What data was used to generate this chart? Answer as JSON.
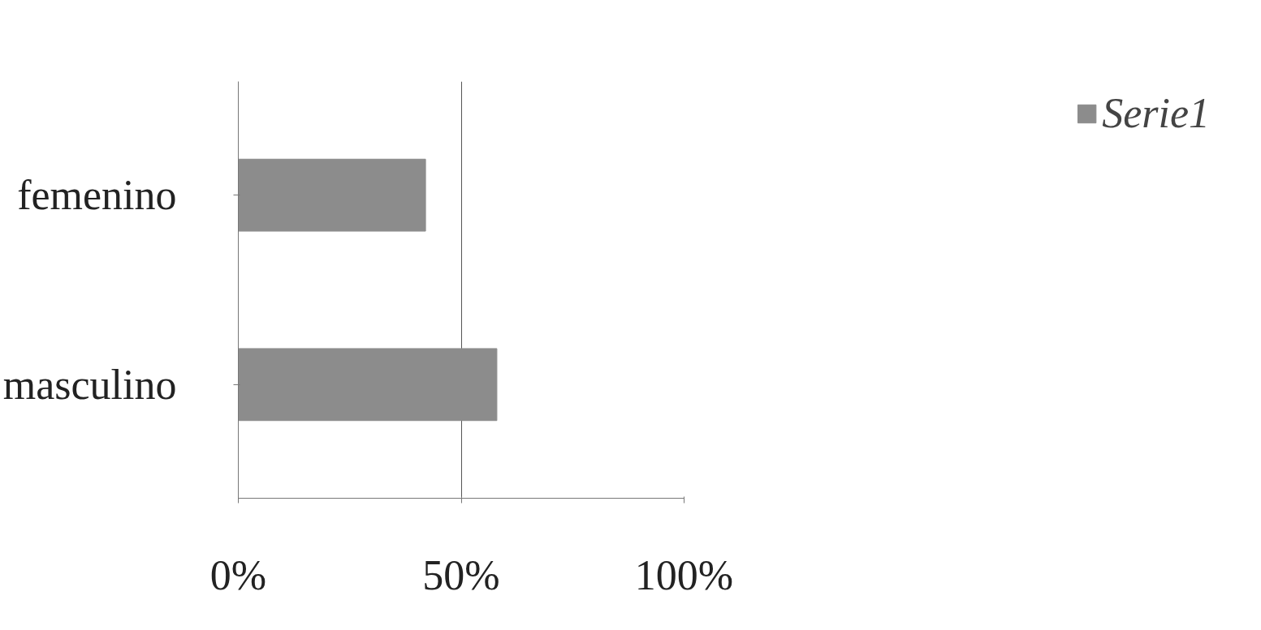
{
  "chart_data": {
    "type": "bar",
    "orientation": "horizontal",
    "categories": [
      "femenino",
      "masculino"
    ],
    "series": [
      {
        "name": "Serie1",
        "color": "#8c8c8c",
        "values": [
          42,
          58
        ]
      }
    ],
    "xlim": [
      0,
      100
    ],
    "xticks": [
      {
        "value": 0,
        "label": "0%"
      },
      {
        "value": 50,
        "label": "50%"
      },
      {
        "value": 100,
        "label": "100%"
      }
    ],
    "grid": "x",
    "legend": "right"
  }
}
